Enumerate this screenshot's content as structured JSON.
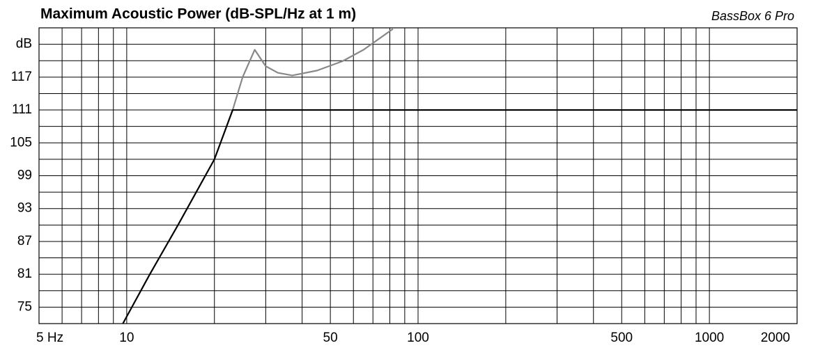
{
  "chart_data": {
    "type": "line",
    "title": "Maximum Acoustic Power (dB-SPL/Hz at 1 m)",
    "annotation": "BassBox 6 Pro",
    "xscale": "log",
    "xlim": [
      5,
      2000
    ],
    "xticks": [
      {
        "value": 5,
        "label": "5 Hz"
      },
      10,
      50,
      100,
      500,
      1000,
      2000
    ],
    "x_minor_ticks": [
      6,
      7,
      8,
      9,
      20,
      30,
      40,
      60,
      70,
      80,
      90,
      200,
      300,
      400,
      600,
      700,
      800,
      900
    ],
    "ylim": [
      72,
      126
    ],
    "yticks": [
      75,
      81,
      87,
      93,
      99,
      105,
      111,
      117,
      {
        "value": 123,
        "label": "dB"
      }
    ],
    "y_minor_ticks": [
      78,
      84,
      90,
      96,
      102,
      108,
      114,
      120
    ],
    "grid": true,
    "series": [
      {
        "color": "#888888",
        "x": [
          23.1,
          25,
          27.5,
          30,
          33,
          37,
          45,
          55,
          65,
          82
        ],
        "values": [
          111,
          117,
          122,
          119,
          117.8,
          117.3,
          118.2,
          119.9,
          122,
          125.8
        ]
      },
      {
        "color": "#000000",
        "x": [
          9.7,
          12,
          15,
          20,
          23.1,
          2000
        ],
        "values": [
          72,
          81,
          90,
          102,
          111,
          111
        ]
      }
    ]
  }
}
